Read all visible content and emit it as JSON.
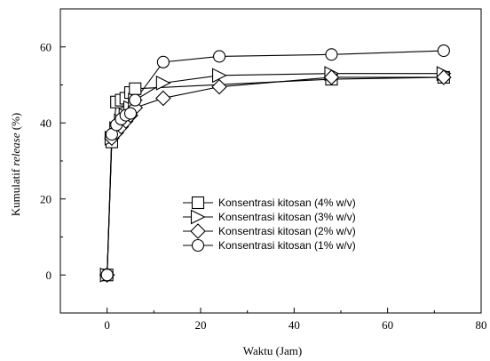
{
  "chart_data": {
    "type": "line",
    "title": "",
    "xlabel": "Waktu (Jam)",
    "ylabel_prefix": "Kumulatif ",
    "ylabel_italic": "release",
    "ylabel_suffix": " (%)",
    "xlim": [
      -10,
      80
    ],
    "ylim": [
      -10,
      70
    ],
    "x_ticks": [
      0,
      20,
      40,
      60,
      80
    ],
    "y_ticks": [
      0,
      20,
      40,
      60
    ],
    "x_minor_step": 10,
    "y_minor_step": 10,
    "grid": false,
    "legend_position": "lower-right",
    "series": [
      {
        "name": "Konsentrasi kitosan (4% w/v)",
        "marker": "square",
        "x": [
          0,
          1,
          2,
          3,
          4,
          5,
          6,
          48,
          72
        ],
        "y": [
          0,
          35,
          45.5,
          46,
          46.5,
          48,
          49,
          51.5,
          52
        ]
      },
      {
        "name": "Konsentrasi kitosan (3% w/v)",
        "marker": "triangle-right",
        "x": [
          0,
          1,
          2,
          3,
          4,
          5,
          6,
          12,
          24,
          48,
          72
        ],
        "y": [
          0,
          36,
          38.5,
          40.5,
          42,
          44,
          46,
          50.5,
          52.5,
          53,
          53
        ]
      },
      {
        "name": "Konsentrasi kitosan (2% w/v)",
        "marker": "diamond",
        "x": [
          0,
          1,
          2,
          3,
          4,
          5,
          6,
          12,
          24,
          48,
          72
        ],
        "y": [
          0,
          36,
          37.5,
          39,
          40.5,
          42,
          44,
          46.5,
          49.5,
          52,
          52
        ]
      },
      {
        "name": "Konsentrasi kitosan (1% w/v)",
        "marker": "circle",
        "x": [
          0,
          1,
          2,
          3,
          4,
          5,
          6,
          12,
          24,
          48,
          72
        ],
        "y": [
          0,
          37,
          39.5,
          41,
          42,
          42.5,
          46,
          56,
          57.5,
          58,
          59
        ]
      }
    ]
  }
}
